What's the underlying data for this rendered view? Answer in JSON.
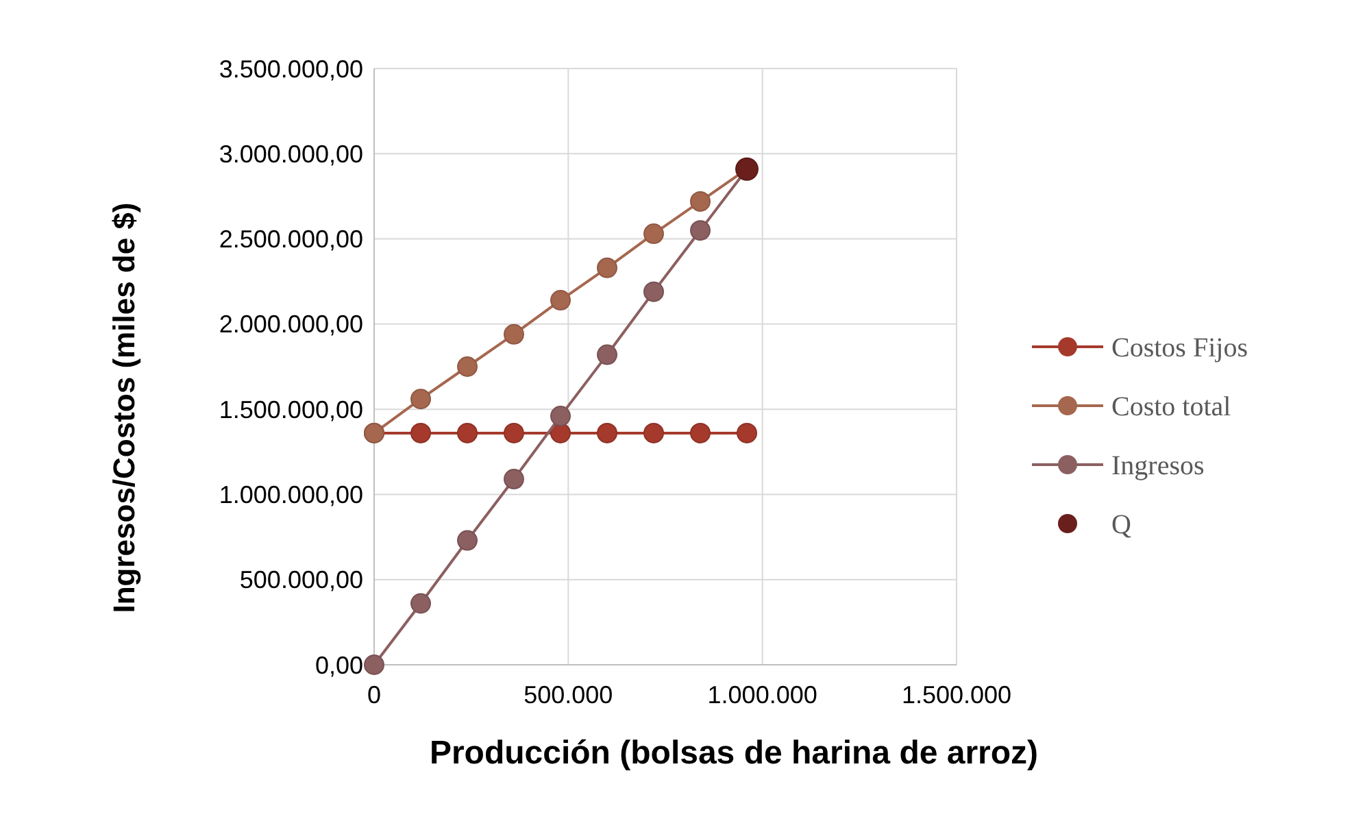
{
  "chart_data": {
    "type": "line",
    "xlabel": "Producción (bolsas de harina de arroz)",
    "ylabel": "Ingresos/Costos (miles de $)",
    "x": [
      0,
      120000,
      240000,
      360000,
      480000,
      600000,
      720000,
      840000,
      960000
    ],
    "series": [
      {
        "name": "Costos Fijos",
        "color": "#a53a2c",
        "values": [
          1360000,
          1360000,
          1360000,
          1360000,
          1360000,
          1360000,
          1360000,
          1360000,
          1360000
        ]
      },
      {
        "name": "Costo total",
        "color": "#a6674f",
        "values": [
          1360000,
          1560000,
          1750000,
          1940000,
          2140000,
          2330000,
          2530000,
          2720000,
          2910000
        ]
      },
      {
        "name": "Ingresos",
        "color": "#8c5f61",
        "values": [
          0,
          360000,
          730000,
          1090000,
          1460000,
          1820000,
          2190000,
          2550000,
          2910000
        ]
      },
      {
        "name": "Q",
        "type": "scatter",
        "color": "#6b1f1c",
        "x": [
          960000
        ],
        "values": [
          2910000
        ]
      }
    ],
    "xlim": [
      0,
      1500000
    ],
    "xticks": [
      0,
      {
        "value": 500000,
        "label": "500.000"
      },
      {
        "value": 1000000,
        "label": "1.000.000"
      },
      {
        "value": 1500000,
        "label": "1.500.000"
      }
    ],
    "ylim": [
      0,
      3500000
    ],
    "yticks": [
      {
        "value": 0,
        "label": "0,00"
      },
      {
        "value": 500000,
        "label": "500.000,00"
      },
      {
        "value": 1000000,
        "label": "1.000.000,00"
      },
      {
        "value": 1500000,
        "label": "1.500.000,00"
      },
      {
        "value": 2000000,
        "label": "2.000.000,00"
      },
      {
        "value": 2500000,
        "label": "2.500.000,00"
      },
      {
        "value": 3000000,
        "label": "3.000.000,00"
      },
      {
        "value": 3500000,
        "label": "3.500.000,00"
      }
    ],
    "grid": true,
    "legend": "right",
    "marker": "circle",
    "line_style": "solid"
  }
}
